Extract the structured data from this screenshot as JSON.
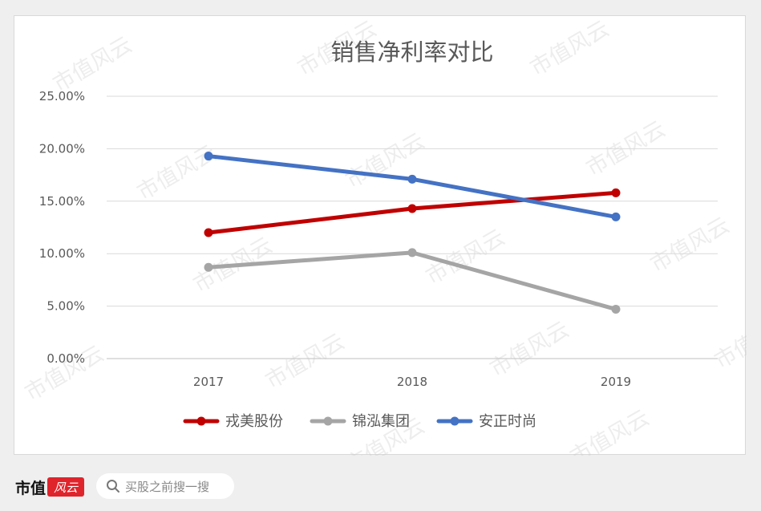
{
  "chart_data": {
    "type": "line",
    "title": "销售净利率对比",
    "categories": [
      "2017",
      "2018",
      "2019"
    ],
    "yticks": [
      "0.00%",
      "5.00%",
      "10.00%",
      "15.00%",
      "20.00%",
      "25.00%"
    ],
    "ylim": [
      0,
      25
    ],
    "grid": true,
    "legend_position": "bottom",
    "series": [
      {
        "name": "戎美股份",
        "values": [
          12.0,
          14.3,
          15.8
        ],
        "color": "#c00000"
      },
      {
        "name": "锦泓集团",
        "values": [
          8.7,
          10.1,
          4.7
        ],
        "color": "#a5a5a5"
      },
      {
        "name": "安正时尚",
        "values": [
          19.3,
          17.1,
          13.5
        ],
        "color": "#4472c4"
      }
    ]
  },
  "watermark": "市值风云",
  "footer": {
    "brand": "市值",
    "seal": "风云",
    "search_placeholder": "买股之前搜一搜",
    "search_icon": "search-icon"
  }
}
